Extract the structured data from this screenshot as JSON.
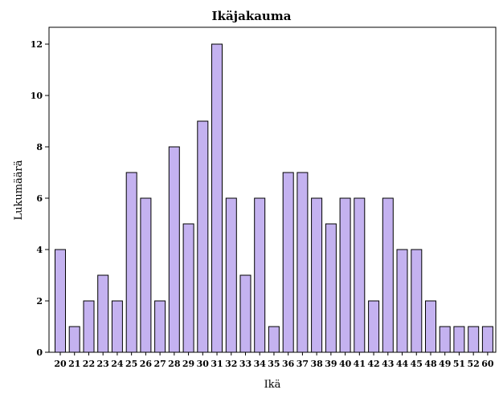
{
  "chart_data": {
    "type": "bar",
    "title": "Ikäjakauma",
    "xlabel": "Ikä",
    "ylabel": "Lukumäärä",
    "ylim": [
      0,
      12
    ],
    "yticks": [
      0,
      2,
      4,
      6,
      8,
      10,
      12
    ],
    "categories": [
      "20",
      "21",
      "22",
      "23",
      "24",
      "25",
      "26",
      "27",
      "28",
      "29",
      "30",
      "31",
      "32",
      "33",
      "34",
      "35",
      "36",
      "37",
      "38",
      "39",
      "40",
      "41",
      "42",
      "43",
      "44",
      "45",
      "48",
      "49",
      "51",
      "52",
      "60"
    ],
    "values": [
      4,
      1,
      2,
      3,
      2,
      7,
      6,
      2,
      8,
      5,
      9,
      12,
      6,
      3,
      6,
      1,
      7,
      7,
      6,
      5,
      6,
      6,
      2,
      6,
      4,
      4,
      2,
      1,
      1,
      1,
      1
    ],
    "bar_color": "#c4b2f0",
    "grid": false
  }
}
